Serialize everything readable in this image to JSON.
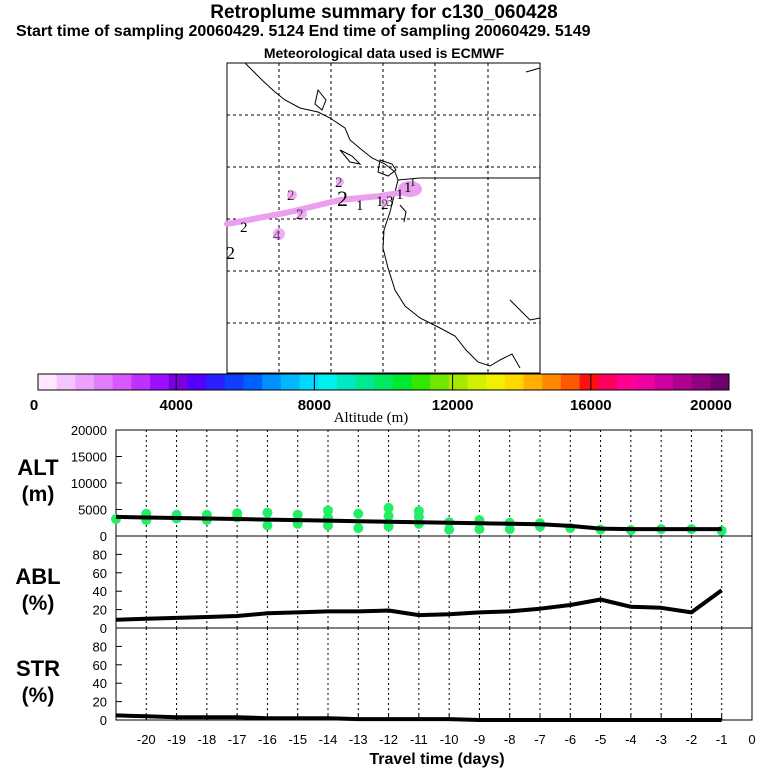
{
  "header": {
    "title": "Retroplume summary for c130_060428",
    "sampling": "Start time of sampling 20060429.  5124      End time of sampling 20060429.  5149",
    "met": "Meteorological data used is ECMWF"
  },
  "map": {
    "plume_labels": [
      "1",
      "1",
      "1",
      "2",
      "2",
      "2",
      "2",
      "2",
      "2",
      "3",
      "4",
      "2",
      "1",
      "1"
    ]
  },
  "colorbar": {
    "label": "Altitude (m)",
    "ticks": [
      "0",
      "4000",
      "8000",
      "12000",
      "16000",
      "20000"
    ],
    "colors": [
      "#ffe8ff",
      "#f5c4ff",
      "#eca0ff",
      "#e27cff",
      "#d858ff",
      "#c030ff",
      "#9a10ff",
      "#7a00e0",
      "#5500ff",
      "#2a20ff",
      "#1040ff",
      "#0060ff",
      "#0090ff",
      "#00b8ff",
      "#00d8ff",
      "#00f0f0",
      "#00e8c0",
      "#00e890",
      "#00e860",
      "#00e830",
      "#30e800",
      "#70e800",
      "#a8e800",
      "#d0f000",
      "#f0f000",
      "#ffd800",
      "#ffb000",
      "#ff8800",
      "#ff5800",
      "#ff1010",
      "#ff0060",
      "#ff0090",
      "#f000a0",
      "#d000a0",
      "#b00090",
      "#900080",
      "#700070"
    ]
  },
  "axes": {
    "xlabel": "Travel time (days)",
    "xticks": [
      "-20",
      "-19",
      "-18",
      "-17",
      "-16",
      "-15",
      "-14",
      "-13",
      "-12",
      "-11",
      "-10",
      "-9",
      "-8",
      "-7",
      "-6",
      "-5",
      "-4",
      "-3",
      "-2",
      "-1",
      "0"
    ],
    "alt_label": "ALT",
    "alt_unit": "(m)",
    "abl_label": "ABL",
    "abl_unit": "(%)",
    "str_label": "STR",
    "str_unit": "(%)",
    "alt_ticks": [
      "20000",
      "15000",
      "10000",
      "5000",
      "0"
    ],
    "pct_ticks": [
      "80",
      "60",
      "40",
      "20",
      "0"
    ]
  },
  "chart_data": [
    {
      "type": "line",
      "title": "ALT",
      "xlabel": "Travel time (days)",
      "ylabel": "ALT (m)",
      "xlim": [
        -21,
        0
      ],
      "ylim": [
        0,
        20000
      ],
      "x": [
        -21,
        -20,
        -19,
        -18,
        -17,
        -16,
        -15,
        -14,
        -13,
        -12,
        -11,
        -10,
        -9,
        -8,
        -7,
        -6,
        -5,
        -4,
        -3,
        -2,
        -1
      ],
      "series": [
        {
          "name": "mean altitude",
          "values": [
            3600,
            3500,
            3400,
            3300,
            3200,
            3100,
            3000,
            2900,
            2800,
            2700,
            2600,
            2500,
            2400,
            2300,
            2200,
            1900,
            1400,
            1300,
            1300,
            1300,
            1300
          ]
        }
      ],
      "points": [
        {
          "x": -21,
          "y": 3200
        },
        {
          "x": -20,
          "y": 3000
        },
        {
          "x": -20,
          "y": 4200
        },
        {
          "x": -19,
          "y": 3300
        },
        {
          "x": -19,
          "y": 4000
        },
        {
          "x": -18,
          "y": 3000
        },
        {
          "x": -18,
          "y": 4000
        },
        {
          "x": -17,
          "y": 3500
        },
        {
          "x": -17,
          "y": 4300
        },
        {
          "x": -16,
          "y": 2000
        },
        {
          "x": -16,
          "y": 4400
        },
        {
          "x": -15,
          "y": 2300
        },
        {
          "x": -15,
          "y": 4000
        },
        {
          "x": -14,
          "y": 2000
        },
        {
          "x": -14,
          "y": 3500
        },
        {
          "x": -14,
          "y": 4800
        },
        {
          "x": -13,
          "y": 1500
        },
        {
          "x": -13,
          "y": 4200
        },
        {
          "x": -12,
          "y": 1800
        },
        {
          "x": -12,
          "y": 3800
        },
        {
          "x": -12,
          "y": 5300
        },
        {
          "x": -11,
          "y": 2300
        },
        {
          "x": -11,
          "y": 3600
        },
        {
          "x": -11,
          "y": 4700
        },
        {
          "x": -10,
          "y": 1200
        },
        {
          "x": -10,
          "y": 2600
        },
        {
          "x": -9,
          "y": 1300
        },
        {
          "x": -9,
          "y": 3000
        },
        {
          "x": -8,
          "y": 1300
        },
        {
          "x": -8,
          "y": 2500
        },
        {
          "x": -7,
          "y": 1800
        },
        {
          "x": -7,
          "y": 2400
        },
        {
          "x": -6,
          "y": 1500
        },
        {
          "x": -5,
          "y": 1200
        },
        {
          "x": -4,
          "y": 1100
        },
        {
          "x": -3,
          "y": 1300
        },
        {
          "x": -2,
          "y": 1300
        },
        {
          "x": -1,
          "y": 1000
        }
      ]
    },
    {
      "type": "line",
      "title": "ABL",
      "ylabel": "ABL (%)",
      "xlim": [
        -21,
        0
      ],
      "ylim": [
        0,
        100
      ],
      "x": [
        -21,
        -20,
        -19,
        -18,
        -17,
        -16,
        -15,
        -14,
        -13,
        -12,
        -11,
        -10,
        -9,
        -8,
        -7,
        -6,
        -5,
        -4,
        -3,
        -2,
        -1
      ],
      "series": [
        {
          "name": "ABL fraction",
          "values": [
            9,
            10,
            11,
            12,
            13,
            16,
            17,
            18,
            18,
            19,
            14,
            15,
            17,
            18,
            21,
            25,
            31,
            23,
            22,
            17,
            41
          ]
        }
      ]
    },
    {
      "type": "line",
      "title": "STR",
      "ylabel": "STR (%)",
      "xlim": [
        -21,
        0
      ],
      "ylim": [
        0,
        100
      ],
      "x": [
        -21,
        -20,
        -19,
        -18,
        -17,
        -16,
        -15,
        -14,
        -13,
        -12,
        -11,
        -10,
        -9,
        -8,
        -7,
        -6,
        -5,
        -4,
        -3,
        -2,
        -1
      ],
      "series": [
        {
          "name": "stratospheric fraction",
          "values": [
            5,
            4,
            3,
            3,
            3,
            2,
            2,
            2,
            1,
            1,
            1,
            1,
            0,
            0,
            0,
            0,
            0,
            0,
            0,
            0,
            0
          ]
        }
      ]
    }
  ]
}
